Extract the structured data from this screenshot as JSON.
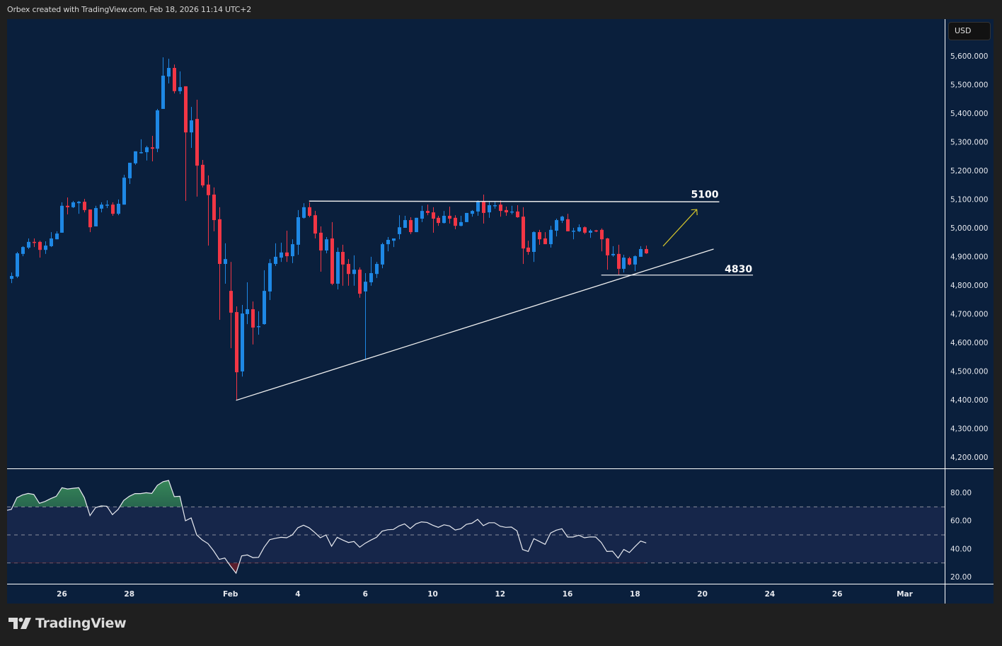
{
  "header": {
    "text": "Orbex created with TradingView.com, Feb 18, 2026 11:14 UTC+2"
  },
  "currency_button": "USD",
  "logo": {
    "text": "TradingView",
    "icon": "tradingview-logo-icon"
  },
  "colors": {
    "up": "#1e88e5",
    "down": "#f23645",
    "background": "#0a1f3c",
    "rsi_band": "#16264a",
    "arrow": "#d4c42c"
  },
  "chart_data": [
    {
      "type": "candlestick",
      "price_axis": {
        "ticks": [
          "5,600.000",
          "5,500.000",
          "5,400.000",
          "5,300.000",
          "5,200.000",
          "5,100.000",
          "5,000.000",
          "4,900.000",
          "4,800.000",
          "4,700.000",
          "4,600.000",
          "4,500.000",
          "4,400.000",
          "4,300.000",
          "4,200.000"
        ],
        "ylim": [
          4170,
          5650
        ]
      },
      "x_axis": {
        "ticks": [
          "26",
          "28",
          "Feb",
          "4",
          "6",
          "10",
          "12",
          "16",
          "18",
          "20",
          "24",
          "26",
          "Mar"
        ]
      },
      "ohlc_fields": [
        "open",
        "high",
        "low",
        "close"
      ],
      "ohlc": [
        [
          4822,
          4844,
          4807,
          4832
        ],
        [
          4830,
          4916,
          4825,
          4911
        ],
        [
          4909,
          4936,
          4901,
          4933
        ],
        [
          4931,
          4963,
          4926,
          4951
        ],
        [
          4951,
          4963,
          4933,
          4949
        ],
        [
          4951,
          4955,
          4896,
          4923
        ],
        [
          4923,
          4953,
          4909,
          4938
        ],
        [
          4936,
          4985,
          4933,
          4963
        ],
        [
          4960,
          4988,
          4960,
          4980
        ],
        [
          4983,
          5089,
          4983,
          5077
        ],
        [
          5077,
          5106,
          5047,
          5072
        ],
        [
          5072,
          5094,
          5069,
          5089
        ],
        [
          5086,
          5094,
          5049,
          5091
        ],
        [
          5091,
          5101,
          5054,
          5062
        ],
        [
          5064,
          5064,
          4985,
          5002
        ],
        [
          5005,
          5077,
          5005,
          5069
        ],
        [
          5067,
          5089,
          5054,
          5081
        ],
        [
          5079,
          5096,
          5069,
          5081
        ],
        [
          5081,
          5089,
          5042,
          5049
        ],
        [
          5049,
          5099,
          5044,
          5084
        ],
        [
          5081,
          5185,
          5081,
          5175
        ],
        [
          5173,
          5227,
          5153,
          5227
        ],
        [
          5225,
          5267,
          5220,
          5267
        ],
        [
          5262,
          5309,
          5259,
          5264
        ],
        [
          5264,
          5286,
          5235,
          5281
        ],
        [
          5281,
          5321,
          5232,
          5276
        ],
        [
          5276,
          5415,
          5264,
          5410
        ],
        [
          5415,
          5595,
          5415,
          5531
        ],
        [
          5528,
          5590,
          5504,
          5558
        ],
        [
          5558,
          5570,
          5469,
          5477
        ],
        [
          5477,
          5546,
          5467,
          5491
        ],
        [
          5494,
          5494,
          5094,
          5333
        ],
        [
          5333,
          5422,
          5279,
          5375
        ],
        [
          5380,
          5447,
          5109,
          5217
        ],
        [
          5220,
          5237,
          5141,
          5148
        ],
        [
          5151,
          5183,
          4938,
          5114
        ],
        [
          5116,
          5141,
          4988,
          5027
        ],
        [
          5030,
          5072,
          4679,
          4874
        ],
        [
          4874,
          4946,
          4805,
          4891
        ],
        [
          4780,
          4881,
          4580,
          4704
        ],
        [
          4706,
          4726,
          4398,
          4496
        ],
        [
          4499,
          4731,
          4481,
          4701
        ],
        [
          4699,
          4810,
          4664,
          4716
        ],
        [
          4716,
          4743,
          4593,
          4652
        ],
        [
          4655,
          4709,
          4627,
          4657
        ],
        [
          4664,
          4852,
          4662,
          4780
        ],
        [
          4778,
          4891,
          4748,
          4877
        ],
        [
          4874,
          4946,
          4867,
          4899
        ],
        [
          4896,
          4948,
          4881,
          4914
        ],
        [
          4914,
          4990,
          4881,
          4901
        ],
        [
          4901,
          4960,
          4877,
          4943
        ],
        [
          4941,
          5062,
          4906,
          5037
        ],
        [
          5035,
          5086,
          5032,
          5072
        ],
        [
          5072,
          5089,
          5037,
          5042
        ],
        [
          5044,
          5059,
          4963,
          4980
        ],
        [
          4983,
          5005,
          4847,
          4921
        ],
        [
          4921,
          4968,
          4911,
          4960
        ],
        [
          4963,
          5020,
          4800,
          4805
        ],
        [
          4805,
          4931,
          4785,
          4916
        ],
        [
          4916,
          4941,
          4798,
          4872
        ],
        [
          4874,
          4891,
          4798,
          4839
        ],
        [
          4839,
          4904,
          4798,
          4854
        ],
        [
          4854,
          4862,
          4756,
          4770
        ],
        [
          4778,
          4842,
          4541,
          4812
        ],
        [
          4810,
          4899,
          4798,
          4842
        ],
        [
          4839,
          4881,
          4825,
          4874
        ],
        [
          4872,
          4948,
          4859,
          4943
        ],
        [
          4943,
          4968,
          4918,
          4958
        ],
        [
          4955,
          4963,
          4933,
          4963
        ],
        [
          4978,
          5044,
          4960,
          5002
        ],
        [
          5000,
          5042,
          5000,
          5027
        ],
        [
          5027,
          5037,
          4978,
          4985
        ],
        [
          4985,
          5035,
          4985,
          5035
        ],
        [
          5032,
          5077,
          5020,
          5059
        ],
        [
          5059,
          5081,
          5044,
          5052
        ],
        [
          5054,
          5072,
          4983,
          5032
        ],
        [
          5035,
          5042,
          5007,
          5017
        ],
        [
          5017,
          5059,
          5015,
          5042
        ],
        [
          5042,
          5074,
          5015,
          5032
        ],
        [
          5035,
          5044,
          4995,
          5007
        ],
        [
          5007,
          5042,
          5005,
          5020
        ],
        [
          5020,
          5052,
          5020,
          5052
        ],
        [
          5049,
          5062,
          5039,
          5059
        ],
        [
          5057,
          5096,
          5042,
          5091
        ],
        [
          5091,
          5116,
          5015,
          5052
        ],
        [
          5054,
          5094,
          5035,
          5079
        ],
        [
          5077,
          5091,
          5067,
          5079
        ],
        [
          5081,
          5096,
          5039,
          5059
        ],
        [
          5062,
          5074,
          5042,
          5054
        ],
        [
          5055,
          5077,
          5047,
          5057
        ],
        [
          5057,
          5079,
          5035,
          5037
        ],
        [
          5039,
          5072,
          4874,
          4928
        ],
        [
          4931,
          4955,
          4906,
          4916
        ],
        [
          4916,
          4988,
          4881,
          4985
        ],
        [
          4985,
          4993,
          4941,
          4960
        ],
        [
          4963,
          4985,
          4943,
          4943
        ],
        [
          4943,
          5007,
          4931,
          4993
        ],
        [
          4990,
          5032,
          4970,
          5027
        ],
        [
          5025,
          5042,
          5017,
          5039
        ],
        [
          5030,
          5049,
          4988,
          4988
        ],
        [
          4988,
          5000,
          4960,
          4990
        ],
        [
          4988,
          5012,
          4985,
          5002
        ],
        [
          5002,
          5005,
          4978,
          4983
        ],
        [
          4983,
          4995,
          4965,
          4990
        ],
        [
          4991,
          4993,
          4985,
          4989
        ],
        [
          4993,
          4998,
          4918,
          4960
        ],
        [
          4963,
          4965,
          4854,
          4904
        ],
        [
          4904,
          4936,
          4899,
          4909
        ],
        [
          4909,
          4941,
          4837,
          4857
        ],
        [
          4857,
          4906,
          4844,
          4896
        ],
        [
          4894,
          4899,
          4869,
          4872
        ],
        [
          4872,
          4904,
          4849,
          4901
        ],
        [
          4899,
          4936,
          4899,
          4926
        ],
        [
          4926,
          4938,
          4909,
          4911
        ]
      ],
      "annotations": {
        "resistance": {
          "label": "5100",
          "price": 5092,
          "from_bar": 53,
          "to_bar": 126
        },
        "support": {
          "label": "4830",
          "price": 4835,
          "from_bar": 105,
          "to_bar": 132
        },
        "trendline": {
          "from_bar": 40,
          "from_price": 4398,
          "to_bar": 125,
          "to_price": 4926
        },
        "arrow": {
          "from_bar": 116,
          "from_price": 4936,
          "to_bar": 122,
          "to_price": 5064
        }
      }
    },
    {
      "type": "line",
      "indicator": "RSI",
      "y_axis": {
        "ticks": [
          "80.00",
          "60.00",
          "40.00",
          "20.00"
        ],
        "ylim": [
          15,
          98
        ]
      },
      "band": {
        "upper": 70,
        "middle": 50,
        "lower": 30
      },
      "values": [
        68.2,
        76.6,
        78.6,
        79.6,
        78.9,
        72.6,
        73.9,
        75.9,
        77.6,
        83.7,
        82.8,
        83.3,
        83.7,
        76.6,
        63.8,
        69.5,
        70.7,
        70.5,
        64.5,
        68.2,
        74.6,
        77.6,
        79.5,
        79.5,
        80.1,
        79.6,
        85.4,
        88.0,
        88.9,
        77.3,
        77.6,
        60.1,
        62.1,
        50.0,
        46.3,
        43.8,
        38.7,
        32.5,
        33.5,
        27.8,
        22.7,
        35.0,
        35.7,
        33.8,
        34.0,
        41.2,
        46.6,
        47.6,
        48.3,
        48.0,
        50.0,
        55.1,
        56.9,
        55.1,
        51.7,
        48.0,
        50.0,
        41.9,
        48.3,
        46.3,
        44.6,
        45.3,
        41.2,
        44.1,
        46.3,
        48.3,
        52.7,
        53.7,
        53.9,
        56.4,
        57.9,
        54.5,
        57.9,
        59.3,
        58.9,
        56.9,
        55.4,
        57.2,
        56.4,
        53.5,
        54.4,
        57.6,
        58.4,
        61.1,
        56.6,
        58.7,
        58.7,
        56.2,
        55.4,
        55.6,
        52.9,
        39.6,
        38.2,
        47.3,
        45.3,
        43.3,
        51.4,
        53.4,
        54.4,
        48.5,
        48.5,
        49.8,
        48.0,
        48.6,
        48.5,
        44.6,
        38.2,
        38.4,
        33.5,
        39.6,
        37.4,
        41.6,
        45.6,
        44.3
      ]
    }
  ]
}
